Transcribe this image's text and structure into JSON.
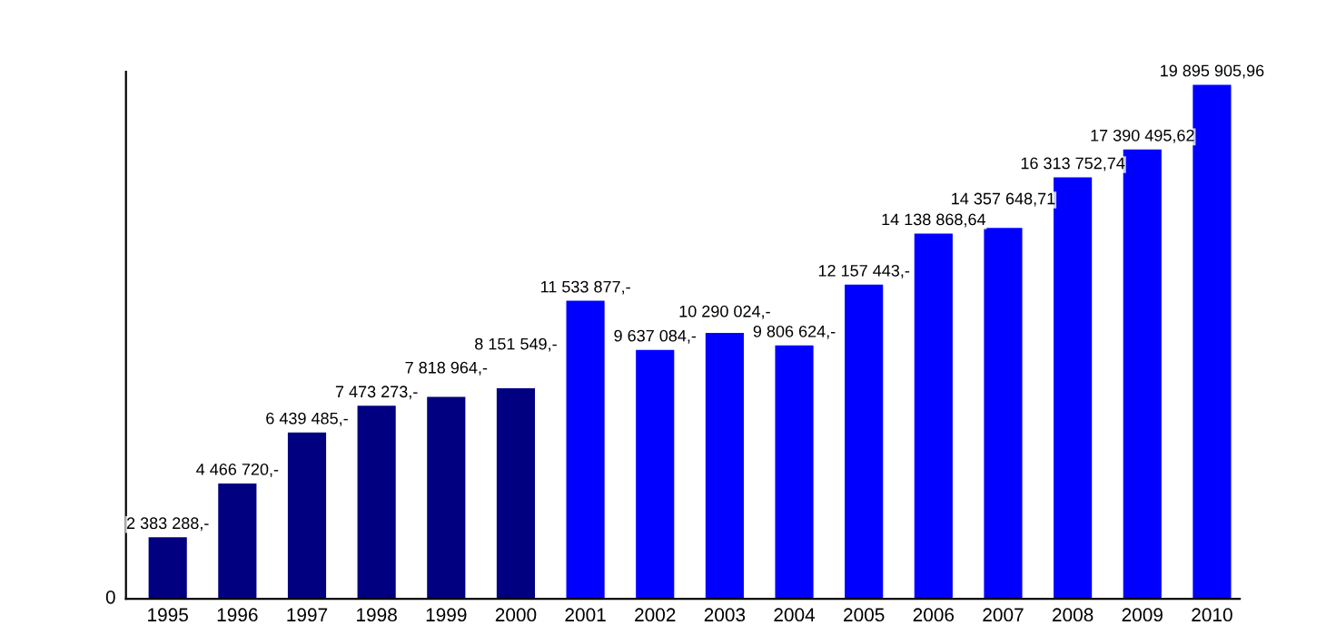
{
  "chart_data": {
    "type": "bar",
    "categories": [
      "1995",
      "1996",
      "1997",
      "1998",
      "1999",
      "2000",
      "2001",
      "2002",
      "2003",
      "2004",
      "2005",
      "2006",
      "2007",
      "2008",
      "2009",
      "2010"
    ],
    "values": [
      2383288,
      4466720,
      6439485,
      7473273,
      7818964,
      8151549,
      11533877,
      9637084,
      10290024,
      9806624,
      12157443,
      14138868.64,
      14357648.71,
      16313752.74,
      17390495.62,
      19895905.96
    ],
    "colors": [
      "#000080",
      "#000080",
      "#000080",
      "#000080",
      "#000080",
      "#000080",
      "#0000ff",
      "#0000ff",
      "#0000ff",
      "#0000ff",
      "#0000ff",
      "#0000ff",
      "#0000ff",
      "#0000ff",
      "#0000ff",
      "#0000ff"
    ],
    "value_labels": [
      "2 383 288,-",
      "4 466 720,-",
      "6 439 485,-",
      "7 473 273,-",
      "7 818 964,-",
      "8 151 549,-",
      "11 533 877,-",
      "9 637 084,-",
      "10 290 024,-",
      "9 806 624,-",
      "12 157 443,-",
      "14 138 868,64",
      "14 357 648,71",
      "16 313 752,74",
      "17 390 495,62",
      "19 895 905,96"
    ],
    "ylim": [
      0,
      20400000
    ],
    "annotations": [
      "0"
    ],
    "grid": false,
    "legend": false
  }
}
